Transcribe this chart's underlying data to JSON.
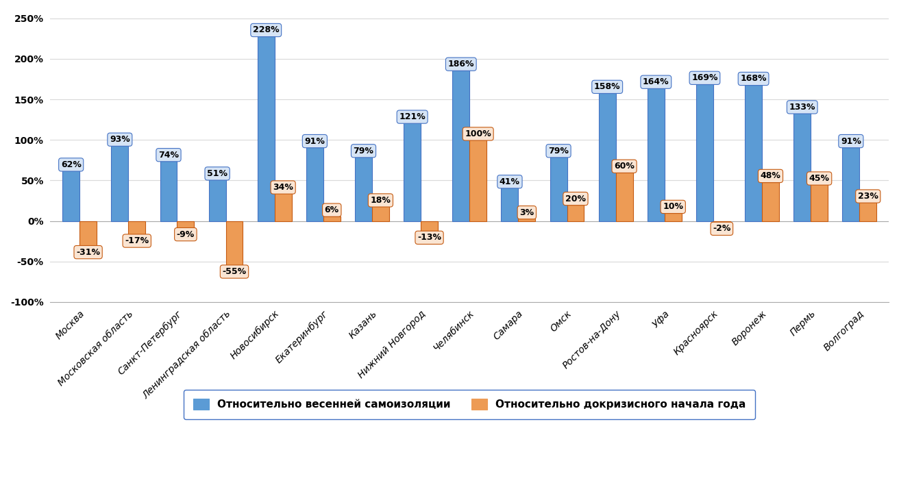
{
  "categories": [
    "Москва",
    "Московская область",
    "Санкт-Петербург",
    "Ленинградская область",
    "Новосибирск",
    "Екатеринбург",
    "Казань",
    "Нижний Новгород",
    "Челябинск",
    "Самара",
    "Омск",
    "Ростов-на-Дону",
    "Уфа",
    "Красноярск",
    "Воронеж",
    "Пермь",
    "Волгоград"
  ],
  "blue_values": [
    62,
    93,
    74,
    51,
    228,
    91,
    79,
    121,
    186,
    41,
    79,
    158,
    164,
    169,
    168,
    133,
    91
  ],
  "orange_values": [
    -31,
    -17,
    -9,
    -55,
    34,
    6,
    18,
    -13,
    100,
    3,
    20,
    60,
    10,
    -2,
    48,
    45,
    23
  ],
  "blue_color": "#5B9BD5",
  "blue_label_bg": "#D6E4F5",
  "orange_color": "#ED9B55",
  "orange_label_bg": "#FAE5D3",
  "blue_label": "Относительно весенней самоизоляции",
  "orange_label": "Относительно докризисного начала года",
  "ylim_min": -100,
  "ylim_max": 260,
  "yticks": [
    -100,
    -50,
    0,
    50,
    100,
    150,
    200,
    250
  ],
  "background_color": "#FFFFFF",
  "grid_color": "#D9D9D9",
  "bar_border_color": "#4472C4",
  "orange_border_color": "#C55A11",
  "label_fontsize": 9,
  "tick_fontsize": 10,
  "legend_fontsize": 11,
  "bar_width": 0.35
}
